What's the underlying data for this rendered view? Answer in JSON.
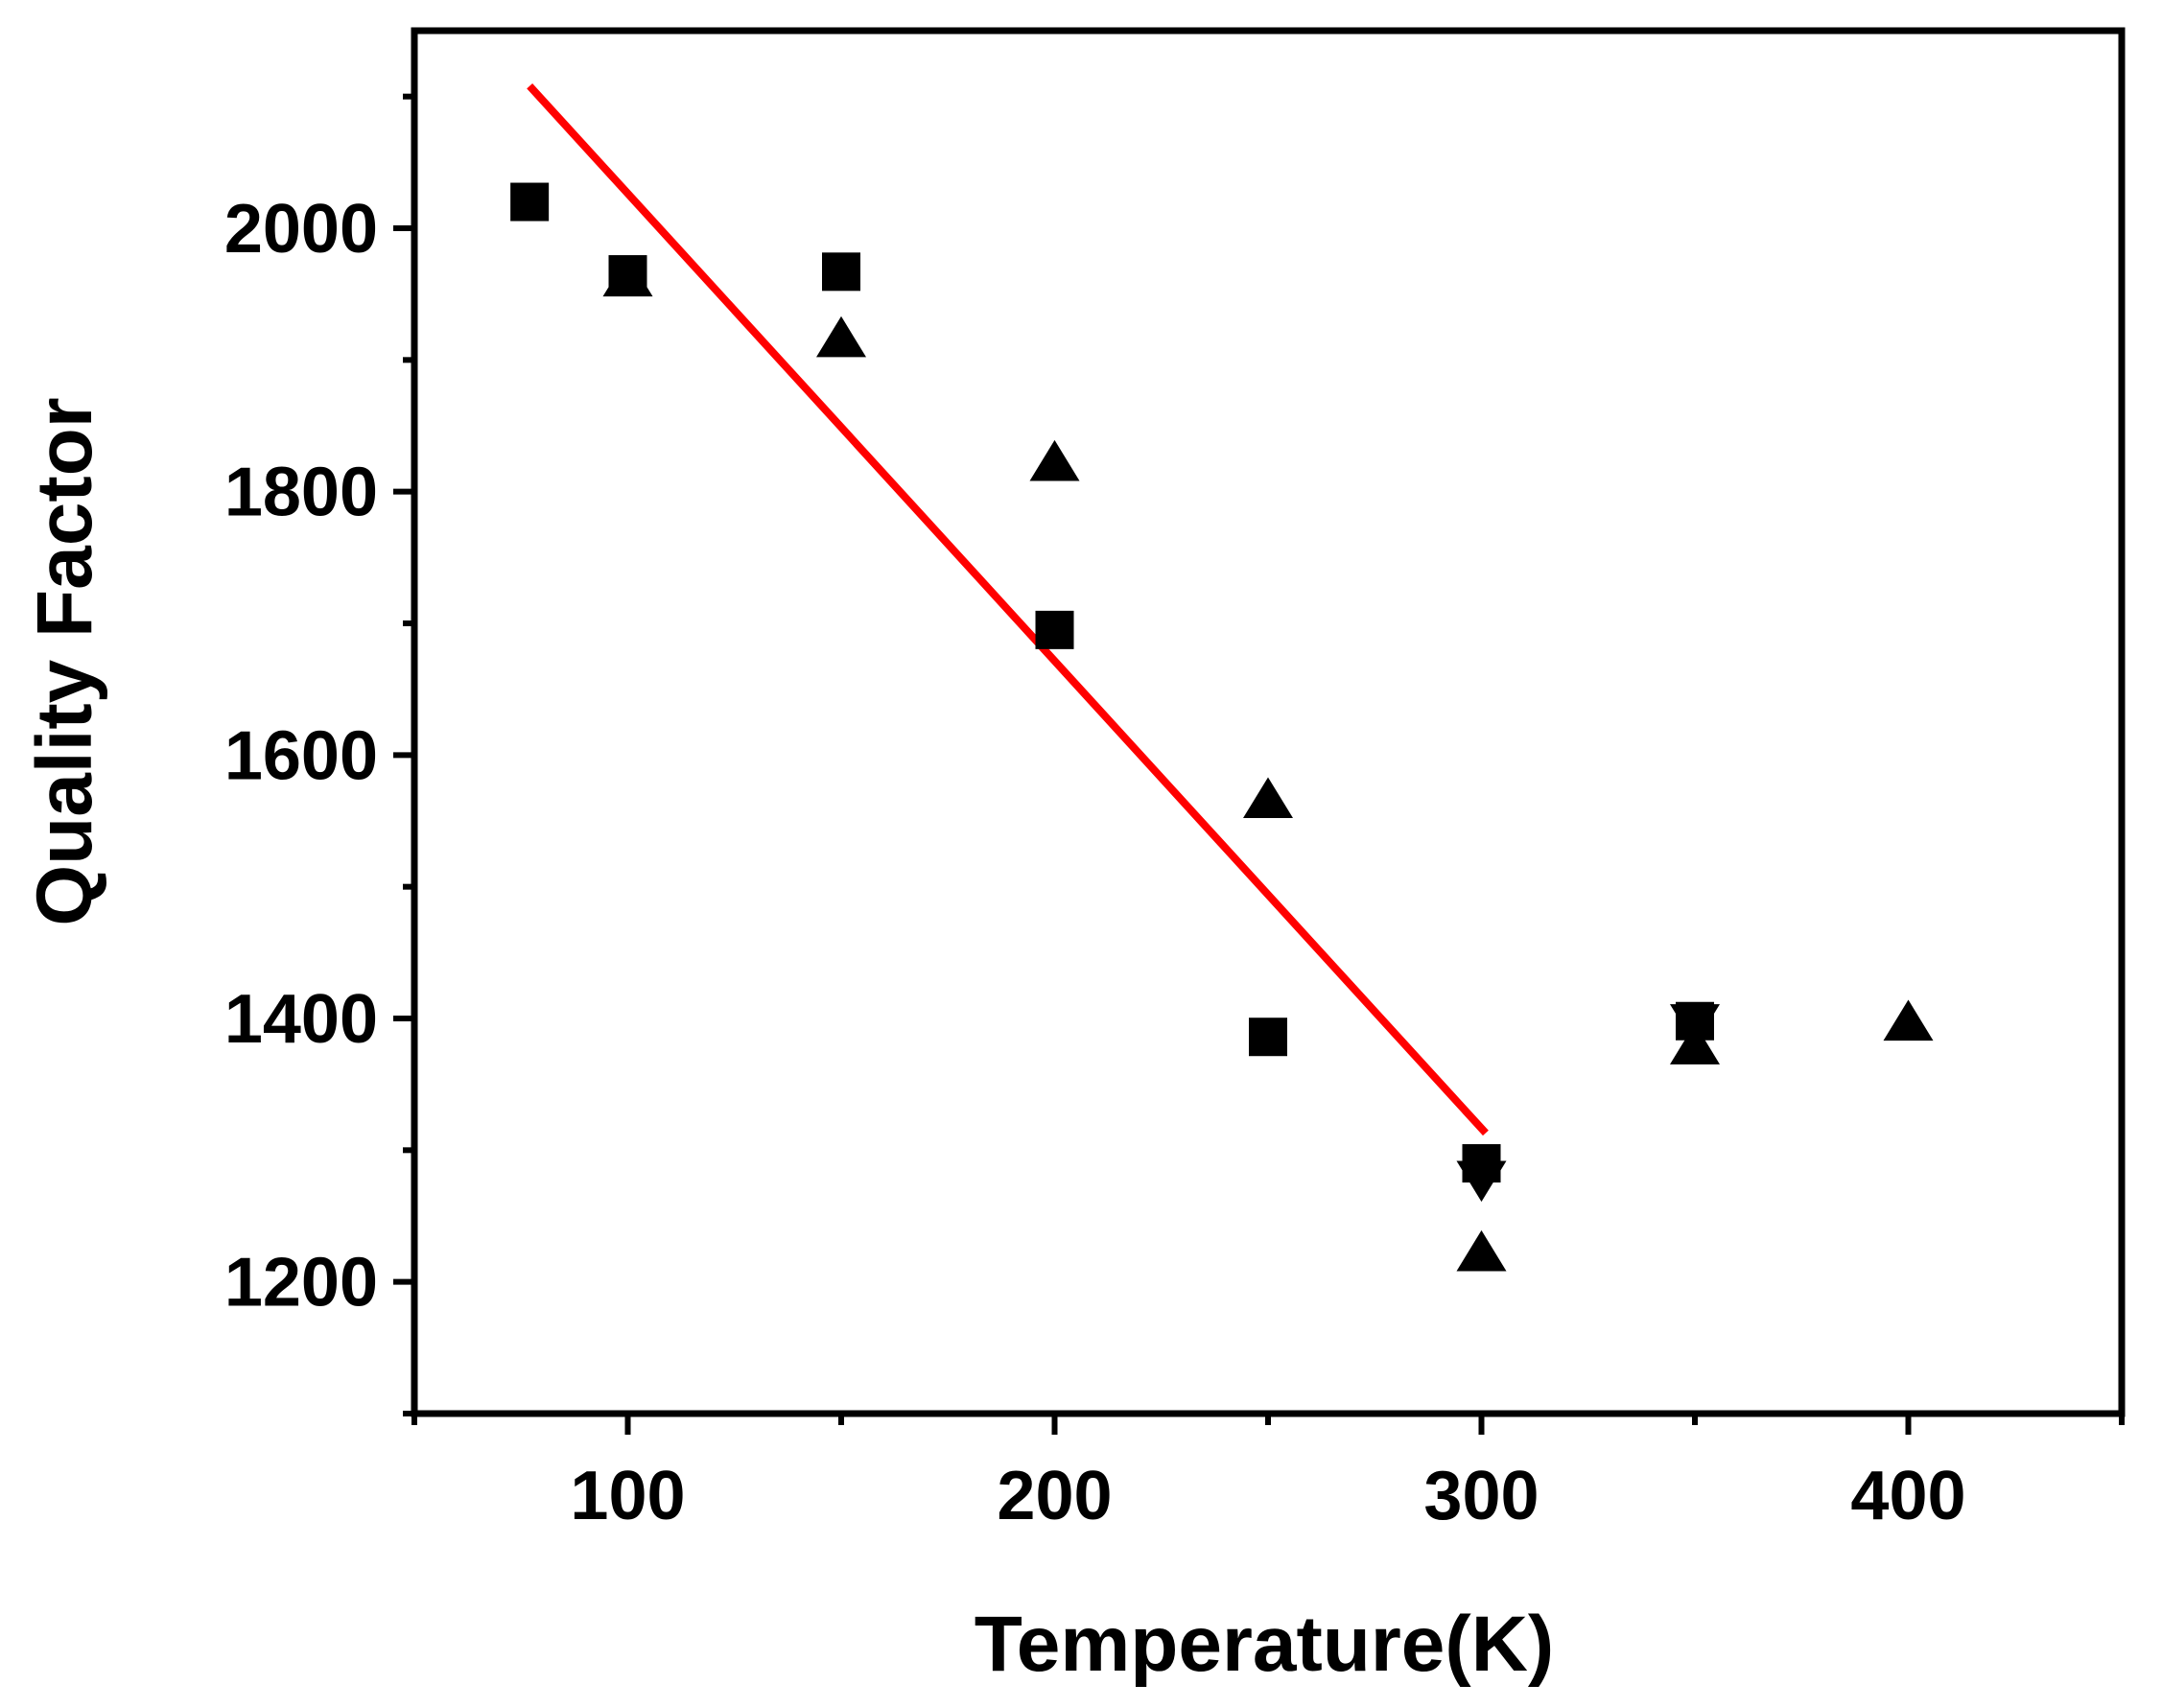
{
  "chart_data": {
    "type": "scatter",
    "title": "",
    "xlabel": "Temperature(K)",
    "ylabel": "Quality Factor",
    "xlim": [
      50,
      450
    ],
    "ylim": [
      1100,
      2150
    ],
    "x_ticks": [
      100,
      200,
      300,
      400
    ],
    "x_tick_labels": [
      "100",
      "200",
      "300",
      "400"
    ],
    "x_minor_ticks": [
      50,
      150,
      250,
      350,
      450
    ],
    "y_ticks": [
      1200,
      1400,
      1600,
      1800,
      2000
    ],
    "y_tick_labels": [
      "1200",
      "1400",
      "1600",
      "1800",
      "2000"
    ],
    "y_minor_ticks": [
      1100,
      1300,
      1500,
      1700,
      1900,
      2100
    ],
    "grid": false,
    "series": [
      {
        "name": "squares",
        "marker": "square",
        "color": "#000000",
        "x": [
          77,
          100,
          150,
          200,
          250,
          300,
          350
        ],
        "y": [
          2020,
          1965,
          1967,
          1695,
          1386,
          1290,
          1398
        ]
      },
      {
        "name": "triangles-up",
        "marker": "triangle-up",
        "color": "#000000",
        "x": [
          100,
          150,
          200,
          250,
          300,
          350,
          400
        ],
        "y": [
          1962,
          1916,
          1822,
          1566,
          1222,
          1379,
          1397
        ]
      },
      {
        "name": "triangles-down",
        "marker": "triangle-down",
        "color": "#000000",
        "x": [
          300,
          350
        ],
        "y": [
          1278,
          1397
        ]
      }
    ],
    "fit_line": {
      "name": "linear fit",
      "color": "#ff0000",
      "x": [
        77,
        301
      ],
      "y": [
        2108,
        1313
      ]
    }
  }
}
